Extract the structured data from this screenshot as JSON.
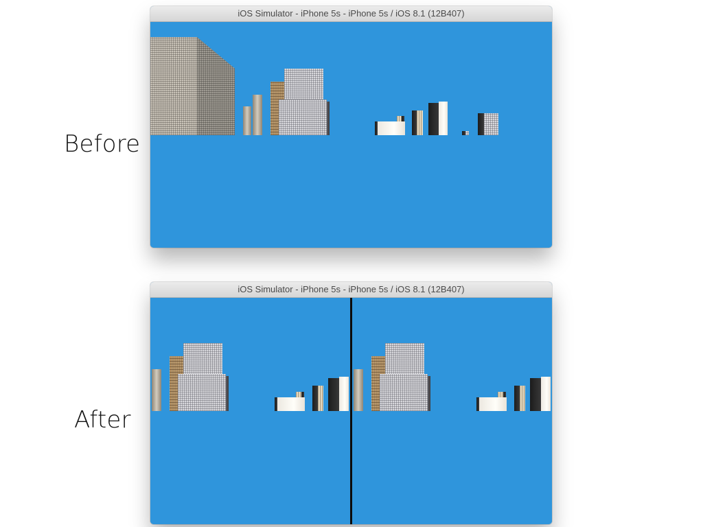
{
  "captions": {
    "before": "Before",
    "after": "After"
  },
  "windows": {
    "before": {
      "title": "iOS Simulator - iPhone 5s - iPhone 5s / iOS 8.1 (12B407)"
    },
    "after": {
      "title": "iOS Simulator - iPhone 5s - iPhone 5s / iOS 8.1 (12B407)"
    }
  },
  "colors": {
    "sky": "#2f95dc",
    "divider": "#0c0c0c"
  }
}
